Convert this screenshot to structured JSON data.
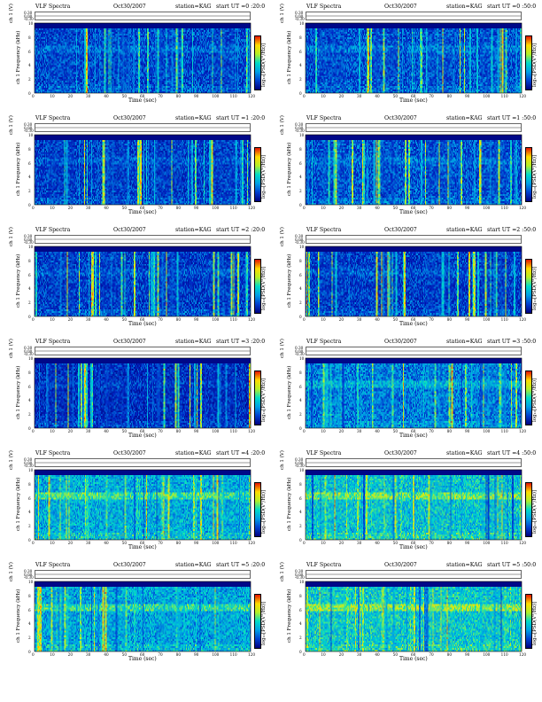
{
  "colors": {
    "background": "#ffffff",
    "spectrogram_low": "#00008b",
    "spectrogram_mid": "#00bfff",
    "spectrogram_high": "#ffff00",
    "spectrogram_peak": "#ff0000"
  },
  "chart_data": [
    {
      "type": "heatmap",
      "header_left": "VLF Spectra",
      "date": "Oct30/2007",
      "station": "station=KAG",
      "start": "start  UT =0 :20:0",
      "xlabel": "Time  (sec)",
      "ylabel": "ch 1\nFrequency (kHz)",
      "top_label": "ch 1 (V)",
      "top_ticks": [
        "0.30",
        "0.00",
        "-0.30"
      ],
      "x_ticks": [
        "0",
        "10",
        "20",
        "30",
        "40",
        "50",
        "60",
        "70",
        "80",
        "90",
        "100",
        "110",
        "120"
      ],
      "y_ticks": [
        "0",
        "2",
        "4",
        "6",
        "8",
        "10"
      ],
      "xlim": [
        0,
        120
      ],
      "ylim": [
        0,
        10
      ],
      "colorbar_label": "log₁₀[PSD(V²/Hz)]",
      "noise_level": 0.18
    },
    {
      "type": "heatmap",
      "header_left": "VLF Spectra",
      "date": "Oct30/2007",
      "station": "station=KAG",
      "start": "start  UT =0 :50:0",
      "xlabel": "Time  (sec)",
      "ylabel": "ch 1\nFrequency (kHz)",
      "top_label": "ch 1 (V)",
      "top_ticks": [
        "0.30",
        "0.00",
        "-0.30"
      ],
      "x_ticks": [
        "0",
        "10",
        "20",
        "30",
        "40",
        "50",
        "60",
        "70",
        "80",
        "90",
        "100",
        "110",
        "120"
      ],
      "y_ticks": [
        "0",
        "2",
        "4",
        "6",
        "8",
        "10"
      ],
      "xlim": [
        0,
        120
      ],
      "ylim": [
        0,
        10
      ],
      "colorbar_label": "log₁₀[PSD(V²/Hz)]",
      "noise_level": 0.2
    },
    {
      "type": "heatmap",
      "header_left": "VLF Spectra",
      "date": "Oct30/2007",
      "station": "station=KAG",
      "start": "start  UT =1 :20:0",
      "xlabel": "Time  (sec)",
      "ylabel": "ch 1\nFrequency (kHz)",
      "top_label": "ch 1 (V)",
      "top_ticks": [
        "0.30",
        "0.00",
        "-0.30"
      ],
      "x_ticks": [
        "0",
        "10",
        "20",
        "30",
        "40",
        "50",
        "60",
        "70",
        "80",
        "90",
        "100",
        "110",
        "120"
      ],
      "y_ticks": [
        "0",
        "2",
        "4",
        "6",
        "8",
        "10"
      ],
      "xlim": [
        0,
        120
      ],
      "ylim": [
        0,
        10
      ],
      "colorbar_label": "log₁₀[PSD(V²/Hz)]",
      "noise_level": 0.15
    },
    {
      "type": "heatmap",
      "header_left": "VLF Spectra",
      "date": "Oct30/2007",
      "station": "station=KAG",
      "start": "start  UT =1 :50:0",
      "xlabel": "Time  (sec)",
      "ylabel": "ch 1\nFrequency (kHz)",
      "top_label": "ch 1 (V)",
      "top_ticks": [
        "0.30",
        "0.00",
        "-0.30"
      ],
      "x_ticks": [
        "0",
        "10",
        "20",
        "30",
        "40",
        "50",
        "60",
        "70",
        "80",
        "90",
        "100",
        "110",
        "120"
      ],
      "y_ticks": [
        "0",
        "2",
        "4",
        "6",
        "8",
        "10"
      ],
      "xlim": [
        0,
        120
      ],
      "ylim": [
        0,
        10
      ],
      "colorbar_label": "log₁₀[PSD(V²/Hz)]",
      "noise_level": 0.2
    },
    {
      "type": "heatmap",
      "header_left": "VLF Spectra",
      "date": "Oct30/2007",
      "station": "station=KAG",
      "start": "start  UT =2 :20:0",
      "xlabel": "Time  (sec)",
      "ylabel": "ch 1\nFrequency (kHz)",
      "top_label": "ch 1 (V)",
      "top_ticks": [
        "0.30",
        "0.00",
        "-0.30"
      ],
      "x_ticks": [
        "0",
        "10",
        "20",
        "30",
        "40",
        "50",
        "60",
        "70",
        "80",
        "90",
        "100",
        "110",
        "120"
      ],
      "y_ticks": [
        "0",
        "2",
        "4",
        "6",
        "8",
        "10"
      ],
      "xlim": [
        0,
        120
      ],
      "ylim": [
        0,
        10
      ],
      "colorbar_label": "log₁₀[PSD(V²/Hz)]",
      "noise_level": 0.15
    },
    {
      "type": "heatmap",
      "header_left": "VLF Spectra",
      "date": "Oct30/2007",
      "station": "station=KAG",
      "start": "start  UT =2 :50:0",
      "xlabel": "Time  (sec)",
      "ylabel": "ch 1\nFrequency (kHz)",
      "top_label": "ch 1 (V)",
      "top_ticks": [
        "0.30",
        "0.00",
        "-0.30"
      ],
      "x_ticks": [
        "0",
        "10",
        "20",
        "30",
        "40",
        "50",
        "60",
        "70",
        "80",
        "90",
        "100",
        "110",
        "120"
      ],
      "y_ticks": [
        "0",
        "2",
        "4",
        "6",
        "8",
        "10"
      ],
      "xlim": [
        0,
        120
      ],
      "ylim": [
        0,
        10
      ],
      "colorbar_label": "log₁₀[PSD(V²/Hz)]",
      "noise_level": 0.15
    },
    {
      "type": "heatmap",
      "header_left": "VLF Spectra",
      "date": "Oct30/2007",
      "station": "station=KAG",
      "start": "start  UT =3 :20:0",
      "xlabel": "Time  (sec)",
      "ylabel": "ch 1\nFrequency (kHz)",
      "top_label": "ch 1 (V)",
      "top_ticks": [
        "0.30",
        "0.00",
        "-0.30"
      ],
      "x_ticks": [
        "0",
        "10",
        "20",
        "30",
        "40",
        "50",
        "60",
        "70",
        "80",
        "90",
        "100",
        "110",
        "120"
      ],
      "y_ticks": [
        "0",
        "2",
        "4",
        "6",
        "8",
        "10"
      ],
      "xlim": [
        0,
        120
      ],
      "ylim": [
        0,
        10
      ],
      "colorbar_label": "log₁₀[PSD(V²/Hz)]",
      "noise_level": 0.1
    },
    {
      "type": "heatmap",
      "header_left": "VLF Spectra",
      "date": "Oct30/2007",
      "station": "station=KAG",
      "start": "start  UT =3 :50:0",
      "xlabel": "Time  (sec)",
      "ylabel": "ch 1\nFrequency (kHz)",
      "top_label": "ch 1 (V)",
      "top_ticks": [
        "0.30",
        "0.00",
        "-0.30"
      ],
      "x_ticks": [
        "0",
        "10",
        "20",
        "30",
        "40",
        "50",
        "60",
        "70",
        "80",
        "90",
        "100",
        "110",
        "120"
      ],
      "y_ticks": [
        "0",
        "2",
        "4",
        "6",
        "8",
        "10"
      ],
      "xlim": [
        0,
        120
      ],
      "ylim": [
        0,
        10
      ],
      "colorbar_label": "log₁₀[PSD(V²/Hz)]",
      "noise_level": 0.3
    },
    {
      "type": "heatmap",
      "header_left": "VLF Spectra",
      "date": "Oct30/2007",
      "station": "station=KAG",
      "start": "start  UT =4 :20:0",
      "xlabel": "Time  (sec)",
      "ylabel": "ch 1\nFrequency (kHz)",
      "top_label": "ch 1 (V)",
      "top_ticks": [
        "0.30",
        "0.00",
        "-0.30"
      ],
      "x_ticks": [
        "0",
        "10",
        "20",
        "30",
        "40",
        "50",
        "60",
        "70",
        "80",
        "90",
        "100",
        "110",
        "120"
      ],
      "y_ticks": [
        "0",
        "2",
        "4",
        "6",
        "8",
        "10"
      ],
      "xlim": [
        0,
        120
      ],
      "ylim": [
        0,
        10
      ],
      "colorbar_label": "log₁₀[PSD(V²/Hz)]",
      "noise_level": 0.42
    },
    {
      "type": "heatmap",
      "header_left": "VLF Spectra",
      "date": "Oct30/2007",
      "station": "station=KAG",
      "start": "start  UT =4 :50:0",
      "xlabel": "Time  (sec)",
      "ylabel": "ch 1\nFrequency (kHz)",
      "top_label": "ch 1 (V)",
      "top_ticks": [
        "0.30",
        "0.00",
        "-0.30"
      ],
      "x_ticks": [
        "0",
        "10",
        "20",
        "30",
        "40",
        "50",
        "60",
        "70",
        "80",
        "90",
        "100",
        "110",
        "120"
      ],
      "y_ticks": [
        "0",
        "2",
        "4",
        "6",
        "8",
        "10"
      ],
      "xlim": [
        0,
        120
      ],
      "ylim": [
        0,
        10
      ],
      "colorbar_label": "log₁₀[PSD(V²/Hz)]",
      "noise_level": 0.48
    },
    {
      "type": "heatmap",
      "header_left": "VLF Spectra",
      "date": "Oct30/2007",
      "station": "station=KAG",
      "start": "start  UT =5 :20:0",
      "xlabel": "Time  (sec)",
      "ylabel": "ch 1\nFrequency (kHz)",
      "top_label": "ch 1 (V)",
      "top_ticks": [
        "0.30",
        "0.00",
        "-0.30"
      ],
      "x_ticks": [
        "0",
        "10",
        "20",
        "30",
        "40",
        "50",
        "60",
        "70",
        "80",
        "90",
        "100",
        "110",
        "120"
      ],
      "y_ticks": [
        "0",
        "2",
        "4",
        "6",
        "8",
        "10"
      ],
      "xlim": [
        0,
        120
      ],
      "ylim": [
        0,
        10
      ],
      "colorbar_label": "log₁₀[PSD(V²/Hz)]",
      "noise_level": 0.4
    },
    {
      "type": "heatmap",
      "header_left": "VLF Spectra",
      "date": "Oct30/2007",
      "station": "station=KAG",
      "start": "start  UT =5 :50:0",
      "xlabel": "Time  (sec)",
      "ylabel": "ch 1\nFrequency (kHz)",
      "top_label": "ch 1 (V)",
      "top_ticks": [
        "0.30",
        "0.00",
        "-0.30"
      ],
      "x_ticks": [
        "0",
        "10",
        "20",
        "30",
        "40",
        "50",
        "60",
        "70",
        "80",
        "90",
        "100",
        "110",
        "120"
      ],
      "y_ticks": [
        "0",
        "2",
        "4",
        "6",
        "8",
        "10"
      ],
      "xlim": [
        0,
        120
      ],
      "ylim": [
        0,
        10
      ],
      "colorbar_label": "log₁₀[PSD(V²/Hz)]",
      "noise_level": 0.5
    }
  ]
}
